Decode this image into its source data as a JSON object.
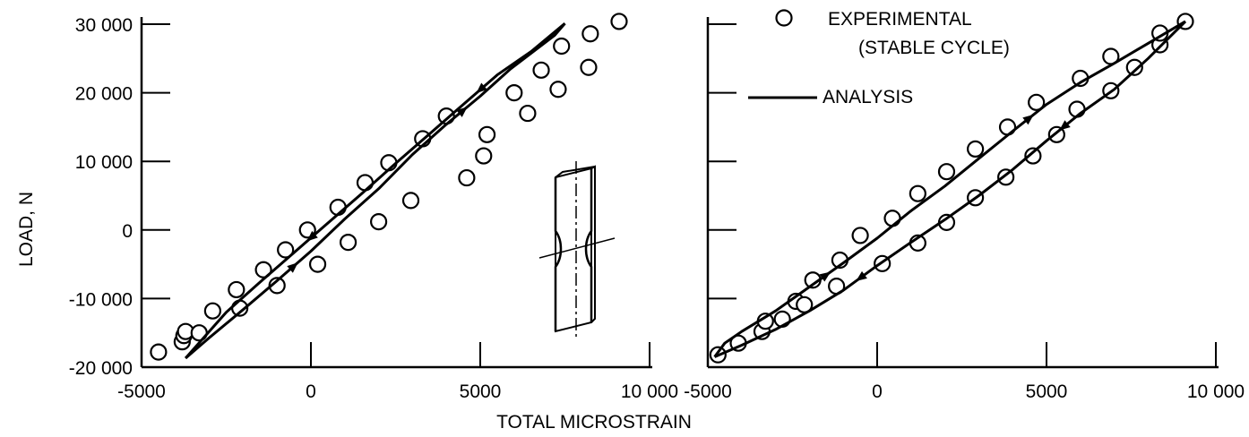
{
  "chart_data": [
    {
      "type": "scatter",
      "panel": "left",
      "ylabel": "LOAD, N",
      "xlim": [
        -5000,
        10000
      ],
      "ylim": [
        -20000,
        30000
      ],
      "x_ticks": [
        -5000,
        0,
        5000,
        10000
      ],
      "x_tick_labels": [
        "-5000",
        "0",
        "5000",
        "10 000"
      ],
      "y_ticks": [
        -20000,
        -10000,
        0,
        10000,
        20000,
        30000
      ],
      "y_tick_labels": [
        "-20 000",
        "-10 000",
        "0",
        "10 000",
        "20 000",
        "30 000"
      ],
      "series": [
        {
          "kind": "points",
          "x": [
            -4500,
            -3800,
            -3750,
            -3700,
            -3300,
            -2900,
            -2200,
            -2100,
            -1400,
            -1000,
            -750,
            -100,
            200,
            800,
            1100,
            1600,
            2000,
            2300,
            2950,
            3300,
            4000,
            4600,
            5100,
            5200,
            6000,
            6400,
            6800,
            7300,
            7400,
            8200,
            8250,
            9100
          ],
          "y": [
            -17800,
            -16300,
            -15400,
            -14800,
            -15000,
            -11800,
            -8700,
            -11400,
            -5800,
            -8100,
            -2900,
            0,
            -5000,
            3300,
            -1800,
            6900,
            1200,
            9800,
            4300,
            13300,
            16600,
            7600,
            10800,
            13900,
            20000,
            17000,
            23300,
            20500,
            26800,
            23700,
            28600,
            30400
          ]
        },
        {
          "kind": "line",
          "x": [
            -3700,
            -3000,
            -2000,
            -1000,
            0,
            1000,
            2000,
            3000,
            4000,
            5000,
            5900,
            6300,
            7200,
            7500
          ],
          "y": [
            -18700,
            -15700,
            -11600,
            -7400,
            -3100,
            1600,
            6000,
            11000,
            15400,
            19500,
            23500,
            25000,
            28400,
            30100
          ]
        },
        {
          "kind": "line",
          "x": [
            7500,
            6500,
            5500,
            4500,
            3500,
            2500,
            1500,
            500,
            -500,
            -1500,
            -2500,
            -3700
          ],
          "y": [
            30100,
            26000,
            22600,
            18300,
            14000,
            9700,
            5300,
            1000,
            -3300,
            -7600,
            -12000,
            -18700
          ]
        }
      ]
    },
    {
      "type": "scatter",
      "panel": "right",
      "xlabel": "TOTAL MICROSTRAIN",
      "xlim": [
        -5000,
        10000
      ],
      "ylim": [
        -20000,
        30000
      ],
      "x_ticks": [
        -5000,
        0,
        5000,
        10000
      ],
      "x_tick_labels": [
        "-5000",
        "0",
        "5000",
        "10 000"
      ],
      "legend": [
        {
          "marker": "circle",
          "label": "EXPERIMENTAL",
          "label_line2": "(STABLE CYCLE)"
        },
        {
          "marker": "line",
          "label": "ANALYSIS"
        }
      ],
      "series": [
        {
          "kind": "points",
          "x": [
            -4700,
            -4100,
            -3400,
            -3300,
            -2800,
            -2400,
            -2150,
            -1900,
            -1200,
            -1100,
            -500,
            150,
            450,
            1200,
            1200,
            2050,
            2050,
            2900,
            2900,
            3800,
            3850,
            4600,
            4700,
            5300,
            5900,
            6000,
            6900,
            6900,
            7600,
            8350,
            8350,
            9100
          ],
          "y": [
            -18200,
            -16500,
            -14800,
            -13300,
            -13000,
            -10400,
            -10900,
            -7300,
            -8200,
            -4400,
            -800,
            -4900,
            1700,
            -1900,
            5300,
            1100,
            8500,
            4700,
            11800,
            7700,
            15000,
            10800,
            18600,
            13900,
            17600,
            22100,
            20300,
            25300,
            23700,
            27000,
            28700,
            30400
          ]
        },
        {
          "kind": "line",
          "x": [
            -4800,
            -4500,
            -4000,
            -3000,
            -2000,
            -1000,
            0,
            1000,
            2000,
            3000,
            4000,
            5000,
            6000,
            7000,
            8000,
            9100
          ],
          "y": [
            -18500,
            -16500,
            -14800,
            -11800,
            -8300,
            -4800,
            -1200,
            2800,
            6400,
            10400,
            14400,
            18300,
            21500,
            24300,
            27200,
            30400
          ]
        },
        {
          "kind": "line",
          "x": [
            9100,
            8000,
            7000,
            6000,
            5000,
            4000,
            3000,
            2000,
            1000,
            0,
            -1000,
            -2000,
            -3000,
            -4000,
            -4800
          ],
          "y": [
            30400,
            25000,
            20500,
            17000,
            13000,
            8800,
            5000,
            1500,
            -1800,
            -5200,
            -8800,
            -11800,
            -14500,
            -16800,
            -18500
          ]
        }
      ]
    }
  ]
}
